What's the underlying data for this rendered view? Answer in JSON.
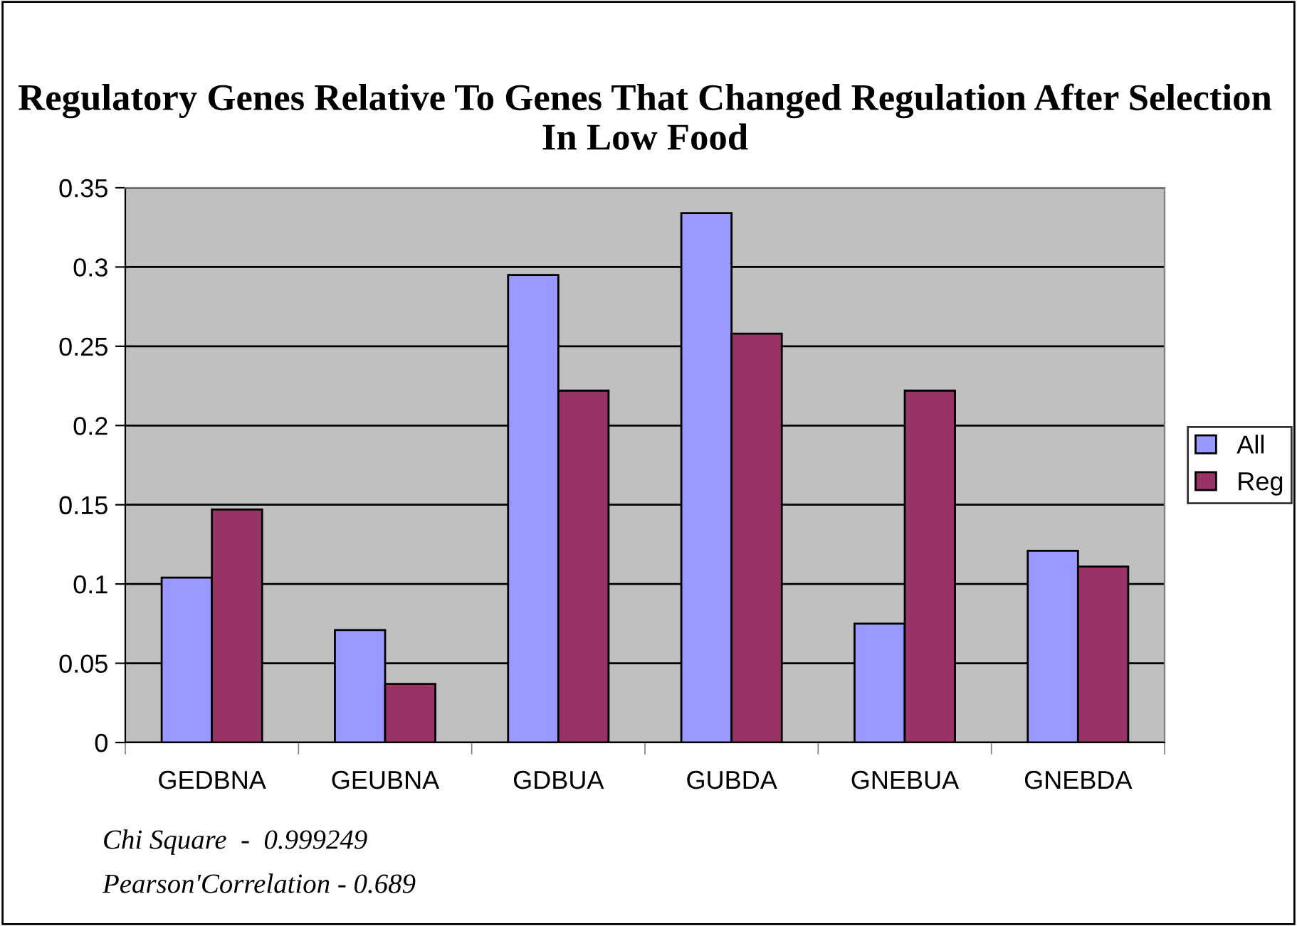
{
  "chart_data": {
    "type": "bar",
    "title": "Regulatory Genes Relative To Genes That Changed Regulation After Selection In Low Food",
    "categories": [
      "GEDBNA",
      "GEUBNA",
      "GDBUA",
      "GUBDA",
      "GNEBUA",
      "GNEBDA"
    ],
    "series": [
      {
        "name": "All",
        "color": "#9999ff",
        "values": [
          0.104,
          0.071,
          0.295,
          0.334,
          0.075,
          0.121
        ]
      },
      {
        "name": "Reg",
        "color": "#993366",
        "values": [
          0.147,
          0.037,
          0.222,
          0.258,
          0.222,
          0.111
        ]
      }
    ],
    "ylim": [
      0,
      0.35
    ],
    "yticks": [
      0,
      0.05,
      0.1,
      0.15,
      0.2,
      0.25,
      0.3,
      0.35
    ],
    "grid": "y",
    "legend": "right",
    "annotations": [
      "Chi Square  -  0.999249",
      "Pearson'Correlation - 0.689"
    ]
  }
}
